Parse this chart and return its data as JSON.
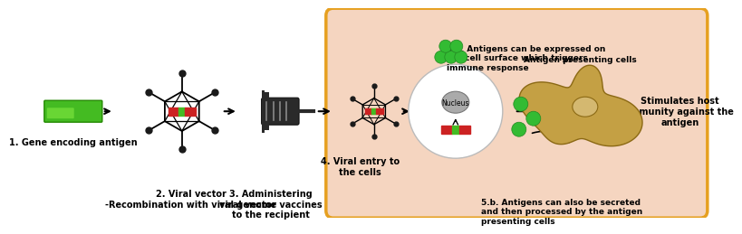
{
  "bg_color": "#ffffff",
  "box_bg": "#f5d5c0",
  "box_border": "#e6a020",
  "text_label1": "1. Gene encoding antigen",
  "text_label2": "2. Viral vector\n-Recombination with viral genome",
  "text_label3": "3. Administering\nviral vector vaccines\nto the recipient",
  "text_label4": "4. Viral entry to\nthe cells",
  "text_label5a": "5.a. Antigens can be expressed on\nthe cell surface which triggers\nimmune response",
  "text_label5b": "5.b. Antigens can also be secreted\nand then processed by the antigen\npresenting cells",
  "text_label6": "Stimulates host\nimmunity against the\nantigen",
  "text_nucleus": "Nucleus",
  "text_apc": "Antigen presenting cells",
  "fontsize_label": 7.0,
  "fontsize_small": 6.5
}
